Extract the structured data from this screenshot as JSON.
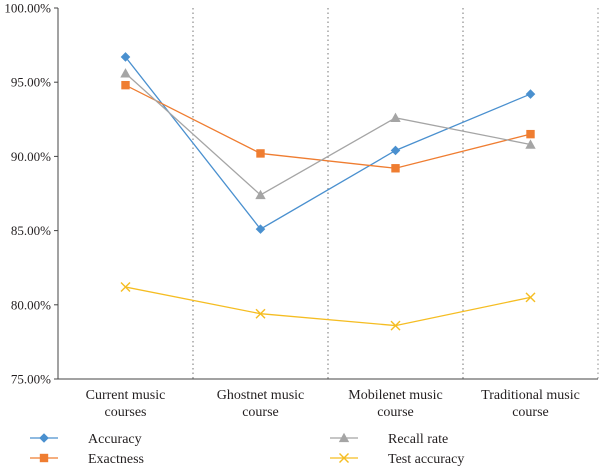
{
  "chart_data": {
    "type": "line",
    "categories": [
      [
        "Current music",
        "courses"
      ],
      [
        "Ghostnet music",
        "course"
      ],
      [
        "Mobilenet music",
        "course"
      ],
      [
        "Traditional music",
        "course"
      ]
    ],
    "y_ticks": [
      "75.00%",
      "80.00%",
      "85.00%",
      "90.00%",
      "95.00%",
      "100.00%"
    ],
    "ylim": [
      75,
      100
    ],
    "grid": "vertical dotted separators between categories",
    "legend_placement": "bottom",
    "series": [
      {
        "name": "Accuracy",
        "color": "#4a90cf",
        "marker": "diamond",
        "values": [
          96.7,
          85.1,
          90.4,
          94.2
        ]
      },
      {
        "name": "Exactness",
        "color": "#ef7d31",
        "marker": "square",
        "values": [
          94.8,
          90.2,
          89.2,
          91.5
        ]
      },
      {
        "name": "Recall rate",
        "color": "#a5a5a5",
        "marker": "triangle",
        "values": [
          95.6,
          87.4,
          92.6,
          90.8
        ]
      },
      {
        "name": "Test accuracy",
        "color": "#f5bd22",
        "marker": "x",
        "values": [
          81.2,
          79.4,
          78.6,
          80.5
        ]
      }
    ]
  }
}
